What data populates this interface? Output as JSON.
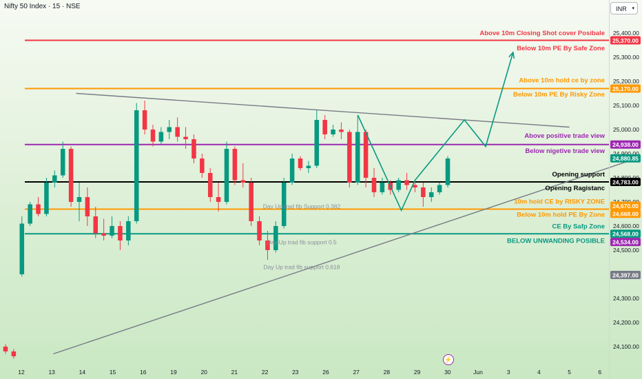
{
  "header": {
    "title": "Nifty 50 Index · 15 · NSE",
    "currency": "INR"
  },
  "colors": {
    "red": "#f23645",
    "orange": "#ff9800",
    "purple": "#9c27b0",
    "teal": "#089981",
    "black": "#000000",
    "gray": "#787b86",
    "up": "#089981",
    "down": "#f23645"
  },
  "chart_data": {
    "type": "candlestick",
    "ylim": [
      24050,
      25450
    ],
    "y_ticks": [
      "25,400.00",
      "25,300.00",
      "25,200.00",
      "25,100.00",
      "25,000.00",
      "24,900.00",
      "24,800.00",
      "24,700.00",
      "24,600.00",
      "24,500.00",
      "24,300.00",
      "24,200.00",
      "24,100.00"
    ],
    "x_ticks": [
      "12",
      "13",
      "14",
      "15",
      "16",
      "19",
      "20",
      "21",
      "22",
      "23",
      "26",
      "27",
      "28",
      "29",
      "30",
      "Jun",
      "3",
      "4",
      "5",
      "6"
    ],
    "price_tags": [
      {
        "value": 25370,
        "label": "25,370.00",
        "color": "red"
      },
      {
        "value": 25170,
        "label": "25,170.00",
        "color": "orange"
      },
      {
        "value": 24938,
        "label": "24,938.00",
        "color": "purple"
      },
      {
        "value": 24880.85,
        "label": "24,880.85",
        "color": "teal"
      },
      {
        "value": 24783,
        "label": "24,783.00",
        "color": "black"
      },
      {
        "value": 24670,
        "label": "24,670.00",
        "color": "orange"
      },
      {
        "value": 24668,
        "label": "24,668.00",
        "color": "orange"
      },
      {
        "value": 24568,
        "label": "24,568.00",
        "color": "teal"
      },
      {
        "value": 24534,
        "label": "24,534.00",
        "color": "purple"
      },
      {
        "value": 24397,
        "label": "24,397.00",
        "color": "gray"
      }
    ],
    "hlines": [
      {
        "value": 25370,
        "color": "red"
      },
      {
        "value": 25170,
        "color": "orange"
      },
      {
        "value": 24938,
        "color": "purple"
      },
      {
        "value": 24783,
        "color": "black"
      },
      {
        "value": 24670,
        "color": "orange"
      },
      {
        "value": 24568,
        "color": "teal"
      }
    ],
    "annotations": [
      {
        "text": "Above 10m Closing Shot cover Posibale",
        "value": 25400,
        "color": "red"
      },
      {
        "text": "Below 10m PE By Safe Zone",
        "value": 25337,
        "color": "red"
      },
      {
        "text": "Above 10m hold ce by zone",
        "value": 25205,
        "color": "orange"
      },
      {
        "text": "Below 10m PE By Risky Zone",
        "value": 25146,
        "color": "orange"
      },
      {
        "text": "Above positive trade view",
        "value": 24975,
        "color": "purple"
      },
      {
        "text": "Below nigetive trade view",
        "value": 24912,
        "color": "purple"
      },
      {
        "text": "Opening support",
        "value": 24815,
        "color": "black"
      },
      {
        "text": "Opening Ragistanc",
        "value": 24757,
        "color": "black"
      },
      {
        "text": "10m hold CE by RISKY ZONE",
        "value": 24702,
        "color": "orange"
      },
      {
        "text": "Below 10m hold PE By Zone",
        "value": 24647,
        "color": "orange"
      },
      {
        "text": "CE By Safp Zone",
        "value": 24598,
        "color": "teal"
      },
      {
        "text": "BELOW UNWANDING POSIBLE",
        "value": 24538,
        "color": "teal"
      },
      {
        "text": "Day Up trad fib Support 0.382",
        "value": 24682,
        "color": "gray"
      },
      {
        "text": "Day Up trad fib support 0.5",
        "value": 24533,
        "color": "gray"
      },
      {
        "text": "Day Up trad fib support 0.618",
        "value": 24430,
        "color": "gray"
      }
    ],
    "candles": [
      {
        "o": 24100,
        "h": 24110,
        "c": 24080,
        "l": 24070
      },
      {
        "o": 24080,
        "h": 24090,
        "c": 24060,
        "l": 24050
      },
      {
        "o": 24400,
        "h": 24640,
        "c": 24610,
        "l": 24390
      },
      {
        "o": 24610,
        "h": 24700,
        "c": 24690,
        "l": 24600
      },
      {
        "o": 24690,
        "h": 24720,
        "c": 24650,
        "l": 24640
      },
      {
        "o": 24650,
        "h": 24800,
        "c": 24780,
        "l": 24640
      },
      {
        "o": 24780,
        "h": 24830,
        "c": 24810,
        "l": 24760
      },
      {
        "o": 24810,
        "h": 24950,
        "c": 24920,
        "l": 24800
      },
      {
        "o": 24920,
        "h": 24930,
        "c": 24700,
        "l": 24680
      },
      {
        "o": 24700,
        "h": 24780,
        "c": 24720,
        "l": 24620
      },
      {
        "o": 24720,
        "h": 24760,
        "c": 24640,
        "l": 24600
      },
      {
        "o": 24640,
        "h": 24680,
        "c": 24570,
        "l": 24550
      },
      {
        "o": 24570,
        "h": 24630,
        "c": 24560,
        "l": 24540
      },
      {
        "o": 24560,
        "h": 24640,
        "c": 24600,
        "l": 24550
      },
      {
        "o": 24600,
        "h": 24620,
        "c": 24540,
        "l": 24500
      },
      {
        "o": 24540,
        "h": 24640,
        "c": 24620,
        "l": 24520
      },
      {
        "o": 24620,
        "h": 25110,
        "c": 25080,
        "l": 24610
      },
      {
        "o": 25080,
        "h": 25120,
        "c": 25000,
        "l": 24980
      },
      {
        "o": 25000,
        "h": 25020,
        "c": 24950,
        "l": 24930
      },
      {
        "o": 24950,
        "h": 25010,
        "c": 24990,
        "l": 24940
      },
      {
        "o": 24990,
        "h": 25040,
        "c": 25010,
        "l": 24960
      },
      {
        "o": 25010,
        "h": 25050,
        "c": 24970,
        "l": 24950
      },
      {
        "o": 24970,
        "h": 25010,
        "c": 24960,
        "l": 24920
      },
      {
        "o": 24960,
        "h": 24980,
        "c": 24880,
        "l": 24860
      },
      {
        "o": 24880,
        "h": 24900,
        "c": 24820,
        "l": 24800
      },
      {
        "o": 24820,
        "h": 24840,
        "c": 24720,
        "l": 24700
      },
      {
        "o": 24720,
        "h": 24780,
        "c": 24700,
        "l": 24660
      },
      {
        "o": 24700,
        "h": 24950,
        "c": 24920,
        "l": 24690
      },
      {
        "o": 24920,
        "h": 24930,
        "c": 24790,
        "l": 24770
      },
      {
        "o": 24790,
        "h": 24860,
        "c": 24780,
        "l": 24760
      },
      {
        "o": 24780,
        "h": 24800,
        "c": 24620,
        "l": 24600
      },
      {
        "o": 24620,
        "h": 24640,
        "c": 24540,
        "l": 24520
      },
      {
        "o": 24540,
        "h": 24580,
        "c": 24500,
        "l": 24460
      },
      {
        "o": 24500,
        "h": 24620,
        "c": 24600,
        "l": 24490
      },
      {
        "o": 24600,
        "h": 24800,
        "c": 24780,
        "l": 24590
      },
      {
        "o": 24780,
        "h": 24900,
        "c": 24880,
        "l": 24770
      },
      {
        "o": 24880,
        "h": 24890,
        "c": 24840,
        "l": 24830
      },
      {
        "o": 24840,
        "h": 24870,
        "c": 24850,
        "l": 24820
      },
      {
        "o": 24850,
        "h": 25080,
        "c": 25040,
        "l": 24840
      },
      {
        "o": 25040,
        "h": 25060,
        "c": 24980,
        "l": 24960
      },
      {
        "o": 24980,
        "h": 25020,
        "c": 25000,
        "l": 24970
      },
      {
        "o": 25000,
        "h": 25030,
        "c": 24990,
        "l": 24960
      },
      {
        "o": 24990,
        "h": 25000,
        "c": 24780,
        "l": 24760
      },
      {
        "o": 24780,
        "h": 25060,
        "c": 24990,
        "l": 24770
      },
      {
        "o": 24990,
        "h": 25000,
        "c": 24800,
        "l": 24760
      },
      {
        "o": 24800,
        "h": 24840,
        "c": 24740,
        "l": 24720
      },
      {
        "o": 24740,
        "h": 24800,
        "c": 24780,
        "l": 24730
      },
      {
        "o": 24780,
        "h": 24790,
        "c": 24750,
        "l": 24730
      },
      {
        "o": 24750,
        "h": 24800,
        "c": 24790,
        "l": 24740
      },
      {
        "o": 24790,
        "h": 24820,
        "c": 24770,
        "l": 24750
      },
      {
        "o": 24770,
        "h": 24790,
        "c": 24760,
        "l": 24740
      },
      {
        "o": 24760,
        "h": 24780,
        "c": 24720,
        "l": 24680
      },
      {
        "o": 24720,
        "h": 24760,
        "c": 24740,
        "l": 24700
      },
      {
        "o": 24740,
        "h": 24780,
        "c": 24770,
        "l": 24730
      },
      {
        "o": 24770,
        "h": 24890,
        "c": 24880,
        "l": 24760
      }
    ],
    "trend_lines": [
      {
        "from": [
          1.8,
          25150
        ],
        "to": [
          18,
          25010
        ],
        "color": "gray"
      },
      {
        "from": [
          1.05,
          24070
        ],
        "to": [
          20.2,
          24880
        ],
        "color": "gray"
      }
    ],
    "projection": {
      "color": "teal",
      "points": [
        [
          11.05,
          25060
        ],
        [
          12.48,
          24665
        ],
        [
          12.93,
          24790
        ],
        [
          14.55,
          25040
        ],
        [
          15.25,
          24930
        ],
        [
          16.15,
          25320
        ]
      ]
    }
  }
}
